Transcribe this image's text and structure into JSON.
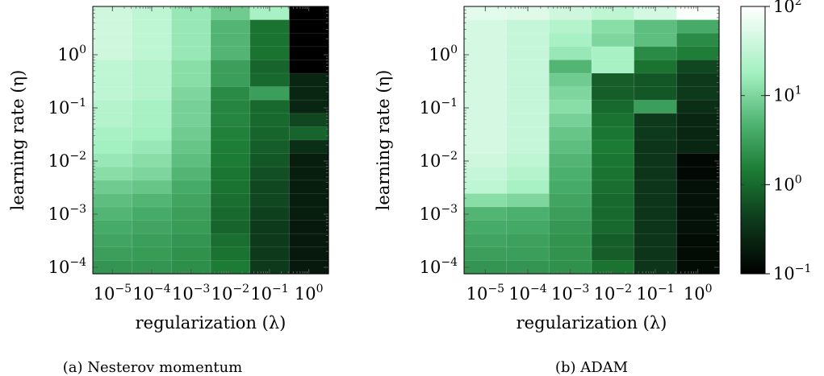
{
  "chart_data": [
    {
      "type": "heatmap",
      "caption": "(a) Nesterov momentum",
      "xlabel": "regularization (λ)",
      "ylabel": "learning rate (η)",
      "x_scale": "log",
      "y_scale": "log",
      "x_tick_labels": [
        {
          "base": "10",
          "exp": "−5"
        },
        {
          "base": "10",
          "exp": "−4"
        },
        {
          "base": "10",
          "exp": "−3"
        },
        {
          "base": "10",
          "exp": "−2"
        },
        {
          "base": "10",
          "exp": "−1"
        },
        {
          "base": "10",
          "exp": "0"
        }
      ],
      "y_tick_labels": [
        {
          "base": "10",
          "exp": "0"
        },
        {
          "base": "10",
          "exp": "−1"
        },
        {
          "base": "10",
          "exp": "−2"
        },
        {
          "base": "10",
          "exp": "−3"
        },
        {
          "base": "10",
          "exp": "−4"
        }
      ],
      "x_values": [
        1e-05,
        0.0001,
        0.001,
        0.01,
        0.1,
        1
      ],
      "y_values_top_to_bottom": [
        5,
        3,
        1.8,
        1,
        0.55,
        0.32,
        0.18,
        0.1,
        0.055,
        0.032,
        0.018,
        0.01,
        0.0055,
        0.0032,
        0.0018,
        0.001,
        0.00055,
        0.00032,
        0.00018,
        0.0001
      ],
      "z_values_rows_top_to_bottom": [
        [
          40,
          30,
          15,
          8,
          20,
          0.1
        ],
        [
          40,
          30,
          15,
          5,
          1.2,
          0.1
        ],
        [
          40,
          30,
          15,
          5,
          1.2,
          0.1
        ],
        [
          40,
          30,
          15,
          5,
          1.2,
          0.1
        ],
        [
          30,
          25,
          12,
          3,
          0.9,
          0.1
        ],
        [
          30,
          25,
          12,
          3,
          1.0,
          0.25
        ],
        [
          30,
          25,
          10,
          2,
          3.0,
          0.25
        ],
        [
          25,
          20,
          9,
          1.8,
          1.0,
          0.25
        ],
        [
          25,
          20,
          9,
          1.8,
          1.0,
          0.5
        ],
        [
          20,
          18,
          8,
          1.6,
          0.9,
          0.9
        ],
        [
          18,
          15,
          7,
          1.5,
          0.8,
          0.3
        ],
        [
          15,
          12,
          6,
          1.4,
          0.7,
          0.2
        ],
        [
          12,
          10,
          5,
          1.3,
          0.6,
          0.2
        ],
        [
          8,
          7,
          4,
          1.2,
          0.5,
          0.2
        ],
        [
          6,
          5,
          3.5,
          1.1,
          0.5,
          0.2
        ],
        [
          5,
          4,
          3,
          1.0,
          0.45,
          0.2
        ],
        [
          4,
          3.5,
          2.8,
          0.9,
          0.4,
          0.18
        ],
        [
          3.5,
          3,
          2.5,
          1.1,
          0.4,
          0.18
        ],
        [
          3,
          2.8,
          2.3,
          1.2,
          0.4,
          0.18
        ],
        [
          2.5,
          2.5,
          2.2,
          1.4,
          0.4,
          0.18
        ]
      ]
    },
    {
      "type": "heatmap",
      "caption": "(b) ADAM",
      "xlabel": "regularization (λ)",
      "ylabel": "learning rate (η)",
      "x_scale": "log",
      "y_scale": "log",
      "x_tick_labels": [
        {
          "base": "10",
          "exp": "−5"
        },
        {
          "base": "10",
          "exp": "−4"
        },
        {
          "base": "10",
          "exp": "−3"
        },
        {
          "base": "10",
          "exp": "−2"
        },
        {
          "base": "10",
          "exp": "−1"
        },
        {
          "base": "10",
          "exp": "0"
        }
      ],
      "y_tick_labels": [
        {
          "base": "10",
          "exp": "0"
        },
        {
          "base": "10",
          "exp": "−1"
        },
        {
          "base": "10",
          "exp": "−2"
        },
        {
          "base": "10",
          "exp": "−3"
        },
        {
          "base": "10",
          "exp": "−4"
        }
      ],
      "x_values": [
        1e-05,
        0.0001,
        0.001,
        0.01,
        0.1,
        1
      ],
      "y_values_top_to_bottom": [
        5,
        3,
        1.8,
        1,
        0.55,
        0.32,
        0.18,
        0.1,
        0.055,
        0.032,
        0.018,
        0.01,
        0.0055,
        0.0032,
        0.0018,
        0.001,
        0.00055,
        0.00032,
        0.00018,
        0.0001
      ],
      "z_values_rows_top_to_bottom": [
        [
          60,
          55,
          40,
          30,
          45,
          90
        ],
        [
          45,
          35,
          25,
          12,
          6,
          4
        ],
        [
          45,
          35,
          20,
          10,
          6,
          2
        ],
        [
          45,
          35,
          15,
          20,
          2,
          1.5
        ],
        [
          45,
          35,
          5,
          20,
          1.2,
          0.5
        ],
        [
          45,
          35,
          8,
          0.8,
          0.7,
          0.4
        ],
        [
          45,
          35,
          10,
          0.8,
          0.7,
          0.4
        ],
        [
          45,
          35,
          12,
          1.0,
          3.0,
          0.3
        ],
        [
          45,
          35,
          9,
          1.2,
          0.4,
          0.25
        ],
        [
          45,
          35,
          7,
          1.3,
          0.4,
          0.25
        ],
        [
          45,
          35,
          6,
          1.4,
          0.35,
          0.25
        ],
        [
          40,
          30,
          5,
          1.3,
          0.35,
          0.12
        ],
        [
          35,
          25,
          4.5,
          1.2,
          0.35,
          0.12
        ],
        [
          30,
          20,
          4,
          1.1,
          0.35,
          0.15
        ],
        [
          12,
          10,
          3.5,
          1.0,
          0.35,
          0.15
        ],
        [
          5,
          4.5,
          3,
          1.0,
          0.35,
          0.15
        ],
        [
          4,
          3.8,
          2.6,
          1.0,
          0.35,
          0.15
        ],
        [
          3.5,
          3.2,
          2.4,
          0.8,
          0.35,
          0.13
        ],
        [
          3,
          3,
          2.4,
          0.8,
          0.35,
          0.13
        ],
        [
          2.5,
          2.5,
          2.3,
          1.2,
          0.35,
          0.13
        ]
      ]
    }
  ],
  "colorbar": {
    "scale": "log",
    "range": [
      0.1,
      100
    ],
    "tick_labels": [
      {
        "base": "10",
        "exp": "2",
        "value": 100
      },
      {
        "base": "10",
        "exp": "1",
        "value": 10
      },
      {
        "base": "10",
        "exp": "0",
        "value": 1
      },
      {
        "base": "10",
        "exp": "−1",
        "value": 0.1
      }
    ],
    "colormap": [
      "#000000",
      "#0e3a1c",
      "#1b7a34",
      "#4bb06d",
      "#a2f0c0",
      "#ffffff"
    ]
  }
}
